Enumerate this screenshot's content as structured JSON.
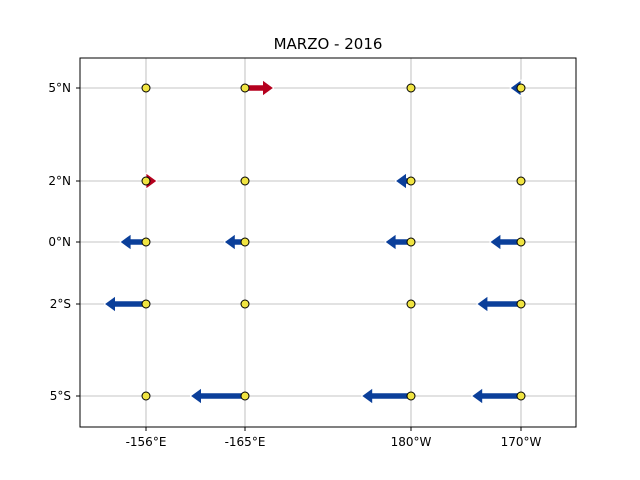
{
  "chart_data": {
    "type": "quiver-map",
    "title": "MARZO - 2016",
    "x_ticks": [
      {
        "label": "-156°E",
        "lon": 204
      },
      {
        "label": "-165°E",
        "lon": 195
      },
      {
        "label": "180°W",
        "lon": 180
      },
      {
        "label": "170°W",
        "lon": 190
      }
    ],
    "y_ticks": [
      {
        "label": "5°N",
        "lat": 5
      },
      {
        "label": "2°N",
        "lat": 2
      },
      {
        "label": "0°N",
        "lat": 0
      },
      {
        "label": "2°S",
        "lat": -2
      },
      {
        "label": "5°S",
        "lat": -5
      }
    ],
    "xlim": [
      162.5,
      171.5
    ],
    "ylim": [
      -6,
      6
    ],
    "grid": true,
    "colors": {
      "westward": "#0b3f9a",
      "eastward": "#b5001e",
      "station": "#f0e442"
    },
    "stations": [
      {
        "lon": 165,
        "lat": 5,
        "u": 0
      },
      {
        "lon": 165,
        "lat": 2,
        "u": 0.1
      },
      {
        "lon": 165,
        "lat": 0,
        "u": -0.5
      },
      {
        "lon": 165,
        "lat": -2,
        "u": -0.8
      },
      {
        "lon": 165,
        "lat": -5,
        "u": 0
      },
      {
        "lon": 167,
        "lat": 5,
        "u": 0.55
      },
      {
        "lon": 167,
        "lat": 2,
        "u": 0
      },
      {
        "lon": 167,
        "lat": 0,
        "u": -0.4
      },
      {
        "lon": 167,
        "lat": -2,
        "u": 0
      },
      {
        "lon": 167,
        "lat": -5,
        "u": -1.05
      },
      {
        "lon": 170,
        "lat": 5,
        "u": 0
      },
      {
        "lon": 170,
        "lat": 2,
        "u": -0.3
      },
      {
        "lon": 170,
        "lat": 0,
        "u": -0.5
      },
      {
        "lon": 170,
        "lat": -2,
        "u": 0
      },
      {
        "lon": 170,
        "lat": -5,
        "u": -0.95
      },
      {
        "lon": 172,
        "lat": 5,
        "u": -0.2
      },
      {
        "lon": 172,
        "lat": 2,
        "u": 0
      },
      {
        "lon": 172,
        "lat": 0,
        "u": -0.6
      },
      {
        "lon": 172,
        "lat": -2,
        "u": -0.85
      },
      {
        "lon": 172,
        "lat": -5,
        "u": -0.95
      }
    ]
  }
}
